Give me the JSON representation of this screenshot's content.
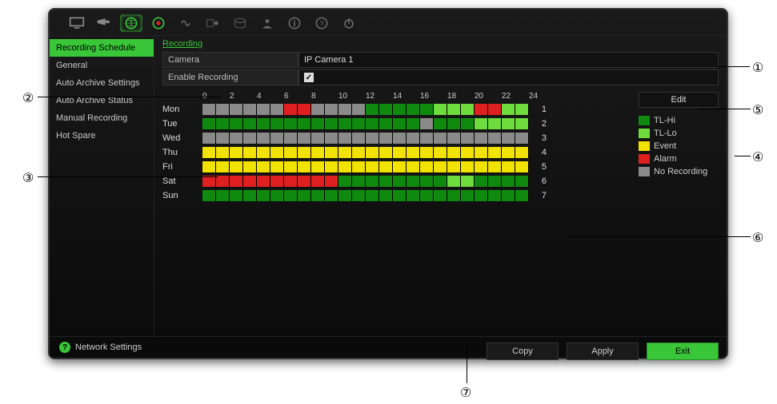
{
  "toolbar_icons": [
    "monitor",
    "camera",
    "network",
    "record",
    "audio",
    "config",
    "disk",
    "user",
    "info",
    "help",
    "power"
  ],
  "sidebar": {
    "items": [
      {
        "label": "Recording Schedule",
        "active": true
      },
      {
        "label": "General"
      },
      {
        "label": "Auto Archive Settings"
      },
      {
        "label": "Auto Archive Status"
      },
      {
        "label": "Manual Recording"
      },
      {
        "label": "Hot Spare"
      }
    ]
  },
  "tabs": {
    "active": "Recording"
  },
  "camera": {
    "label": "Camera",
    "value": "IP Camera 1"
  },
  "enable_recording": {
    "label": "Enable Recording",
    "checked": true
  },
  "hours": [
    "0",
    "2",
    "4",
    "6",
    "8",
    "10",
    "12",
    "14",
    "16",
    "18",
    "20",
    "22",
    "24"
  ],
  "colors": {
    "tlhi": "#0f8a0f",
    "tllo": "#6edc3c",
    "event": "#f2e200",
    "alarm": "#e02020",
    "none": "#8a8a8a",
    "bg": "#0f0f0f"
  },
  "legend": [
    {
      "key": "tlhi",
      "label": "TL-Hi"
    },
    {
      "key": "tllo",
      "label": "TL-Lo"
    },
    {
      "key": "event",
      "label": "Event"
    },
    {
      "key": "alarm",
      "label": "Alarm"
    },
    {
      "key": "none",
      "label": "No Recording"
    }
  ],
  "edit_label": "Edit",
  "days": [
    {
      "name": "Mon",
      "num": "1",
      "cells": [
        "none",
        "none",
        "none",
        "none",
        "none",
        "none",
        "alarm",
        "alarm",
        "none",
        "none",
        "none",
        "none",
        "tlhi",
        "tlhi",
        "tlhi",
        "tlhi",
        "tlhi",
        "tllo",
        "tllo",
        "tllo",
        "alarm",
        "alarm",
        "tllo",
        "tllo"
      ]
    },
    {
      "name": "Tue",
      "num": "2",
      "cells": [
        "tlhi",
        "tlhi",
        "tlhi",
        "tlhi",
        "tlhi",
        "tlhi",
        "tlhi",
        "tlhi",
        "tlhi",
        "tlhi",
        "tlhi",
        "tlhi",
        "tlhi",
        "tlhi",
        "tlhi",
        "tlhi",
        "none",
        "tlhi",
        "tlhi",
        "tlhi",
        "tllo",
        "tllo",
        "tllo",
        "tllo"
      ]
    },
    {
      "name": "Wed",
      "num": "3",
      "cells": [
        "none",
        "none",
        "none",
        "none",
        "none",
        "none",
        "none",
        "none",
        "none",
        "none",
        "none",
        "none",
        "none",
        "none",
        "none",
        "none",
        "none",
        "none",
        "none",
        "none",
        "none",
        "none",
        "none",
        "none"
      ]
    },
    {
      "name": "Thu",
      "num": "4",
      "cells": [
        "event",
        "event",
        "event",
        "event",
        "event",
        "event",
        "event",
        "event",
        "event",
        "event",
        "event",
        "event",
        "event",
        "event",
        "event",
        "event",
        "event",
        "event",
        "event",
        "event",
        "event",
        "event",
        "event",
        "event"
      ]
    },
    {
      "name": "Fri",
      "num": "5",
      "cells": [
        "event",
        "event",
        "event",
        "event",
        "event",
        "event",
        "event",
        "event",
        "event",
        "event",
        "event",
        "event",
        "event",
        "event",
        "event",
        "event",
        "event",
        "event",
        "event",
        "event",
        "event",
        "event",
        "event",
        "event"
      ]
    },
    {
      "name": "Sat",
      "num": "6",
      "cells": [
        "alarm",
        "alarm",
        "alarm",
        "alarm",
        "alarm",
        "alarm",
        "alarm",
        "alarm",
        "alarm",
        "alarm",
        "tlhi",
        "tlhi",
        "tlhi",
        "tlhi",
        "tlhi",
        "tlhi",
        "tlhi",
        "tlhi",
        "tllo",
        "tllo",
        "tlhi",
        "tlhi",
        "tlhi",
        "tlhi"
      ]
    },
    {
      "name": "Sun",
      "num": "7",
      "cells": [
        "tlhi",
        "tlhi",
        "tlhi",
        "tlhi",
        "tlhi",
        "tlhi",
        "tlhi",
        "tlhi",
        "tlhi",
        "tlhi",
        "tlhi",
        "tlhi",
        "tlhi",
        "tlhi",
        "tlhi",
        "tlhi",
        "tlhi",
        "tlhi",
        "tlhi",
        "tlhi",
        "tlhi",
        "tlhi",
        "tlhi",
        "tlhi"
      ]
    }
  ],
  "buttons": {
    "copy": "Copy",
    "apply": "Apply",
    "exit": "Exit"
  },
  "status": "Network Settings",
  "callouts": [
    "①",
    "②",
    "③",
    "④",
    "⑤",
    "⑥",
    "⑦"
  ]
}
